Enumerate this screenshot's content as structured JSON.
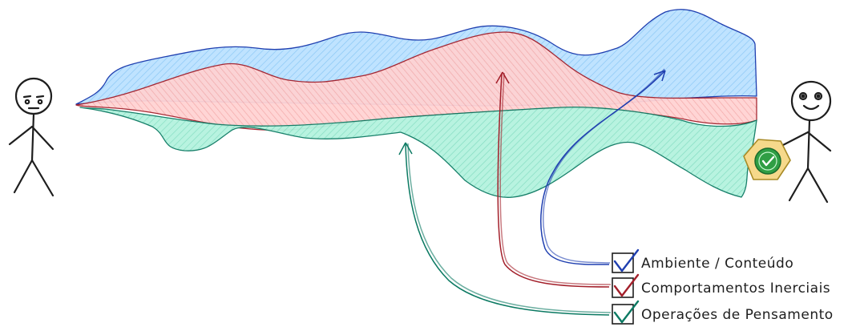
{
  "legend": {
    "items": [
      {
        "label": "Ambiente / Conteúdo",
        "color": "#1f3fb0",
        "fill": "#a5d8ff"
      },
      {
        "label": "Comportamentos Inerciais",
        "color": "#a31f2a",
        "fill": "#ffc9c9"
      },
      {
        "label": "Operações de Pensamento",
        "color": "#0c7a63",
        "fill": "#96f2d7"
      }
    ]
  },
  "figures": {
    "left": {
      "mood": "tired"
    },
    "right": {
      "mood": "happy",
      "badge": "check-badge"
    }
  },
  "colors": {
    "stroke": "#1e1e1e",
    "badge_fill": "#f6d98b",
    "badge_circle": "#2f9e44"
  }
}
